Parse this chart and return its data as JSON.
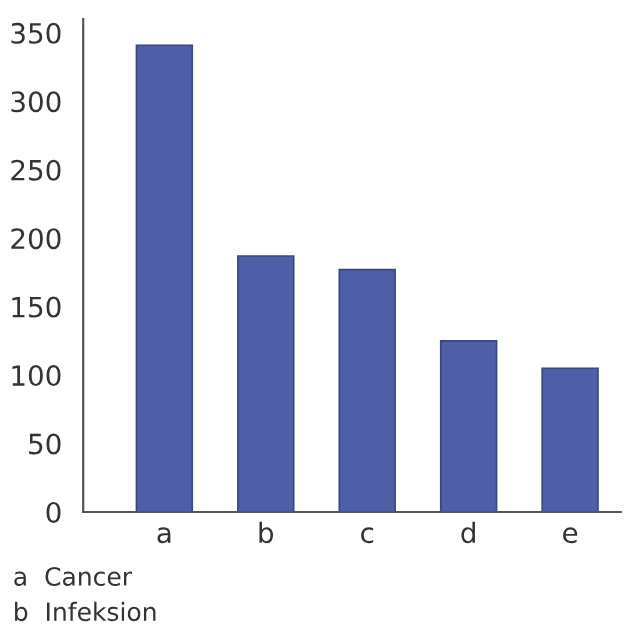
{
  "chart_data": {
    "type": "bar",
    "categories": [
      "a",
      "b",
      "c",
      "d",
      "e"
    ],
    "values": [
      341,
      187,
      177,
      125,
      105
    ],
    "color": "#4e5fa8",
    "ylim": [
      0,
      360
    ],
    "yticks": [
      0,
      50,
      100,
      150,
      200,
      250,
      300,
      350
    ],
    "grid": false,
    "annotations": [
      "a  Cancer",
      "b  Infeksion"
    ]
  }
}
